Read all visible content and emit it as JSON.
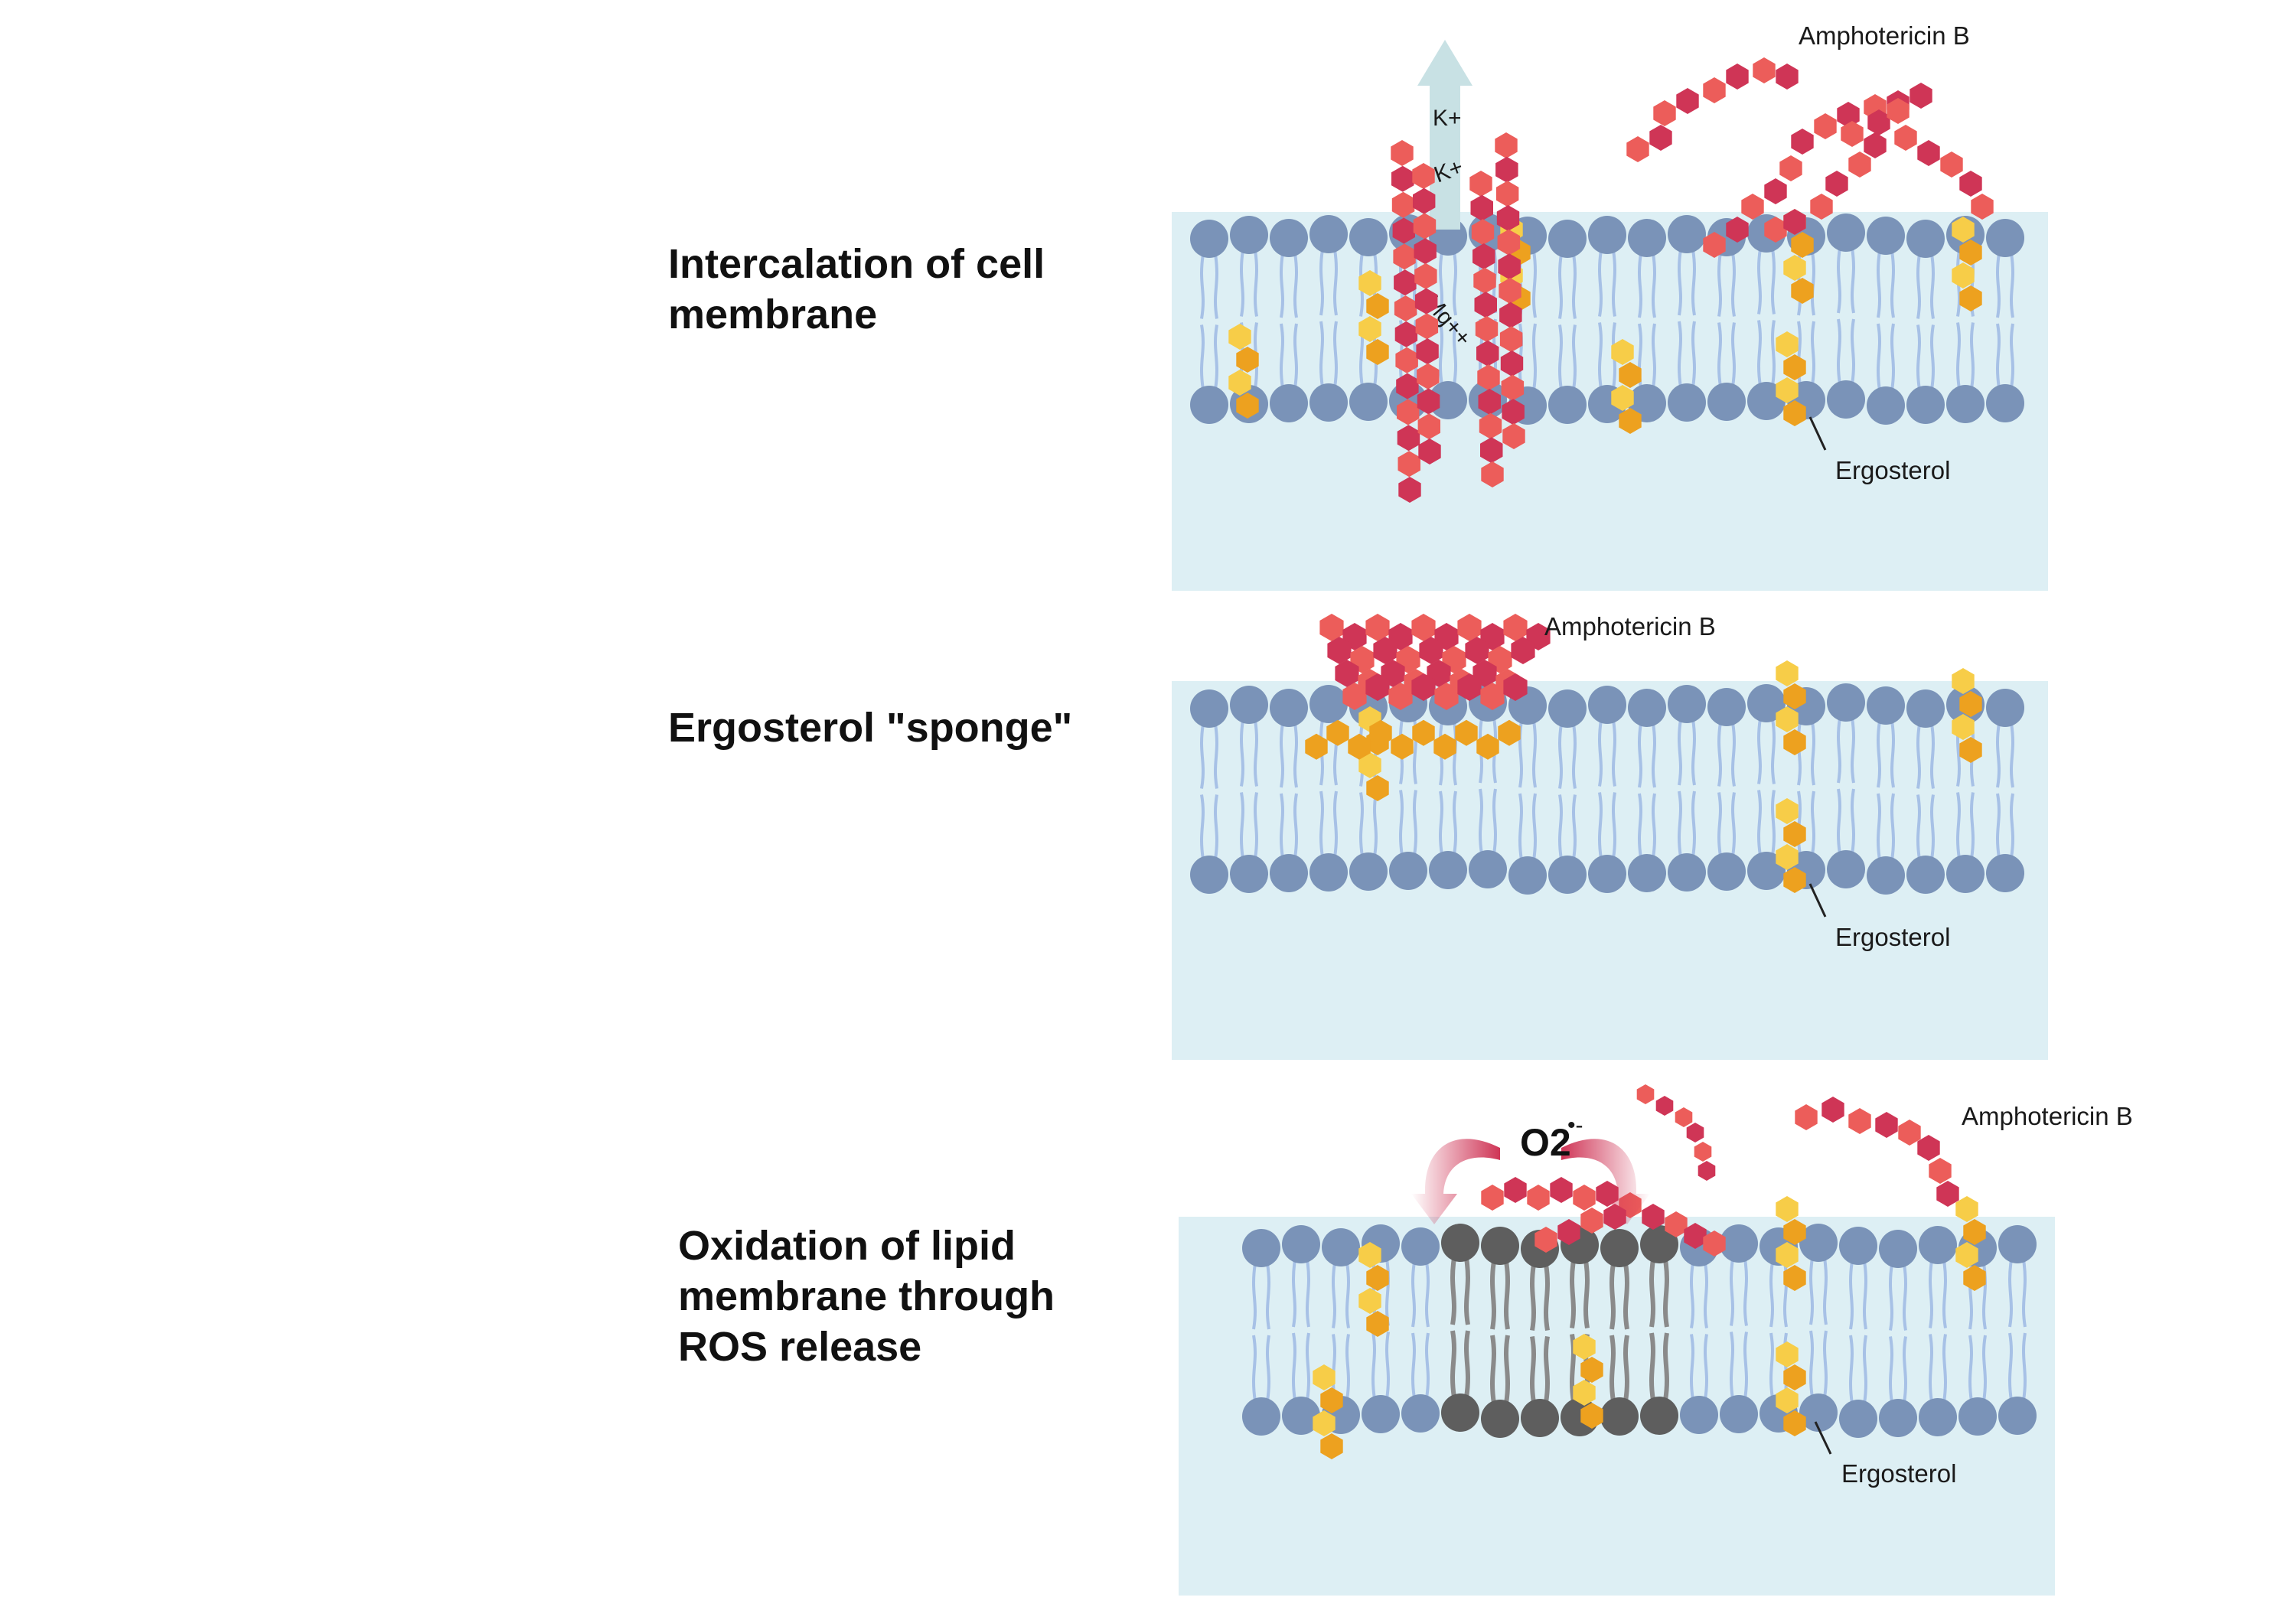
{
  "headings": {
    "intercalation": "Intercalation of cell\nmembrane",
    "sponge": "Ergosterol \"sponge\"",
    "oxidation": "Oxidation of lipid\nmembrane through\nROS release"
  },
  "labels": {
    "amphotericin_b": "Amphotericin B",
    "ergosterol": "Ergosterol"
  },
  "ions": {
    "potassium_1": "K+",
    "potassium_2": "K+",
    "magnesium": "Mg++"
  },
  "ros": {
    "symbol": "O2",
    "charge": "•-"
  },
  "colors": {
    "cytoplasm": "#ddeff4",
    "lipid_head": "#7a93b8",
    "lipid_tail": "#a7c1e6",
    "oxidized_head": "#5e5e5e",
    "oxidized_tail": "#8a8a8a",
    "amphotericin_dark": "#cf3556",
    "amphotericin_light": "#ec5d5a",
    "ergosterol_orange": "#eda11f",
    "ergosterol_yellow": "#f7cd48",
    "ion_arrow": "#c8e1e4",
    "ros_arrow": "#cf3556"
  }
}
